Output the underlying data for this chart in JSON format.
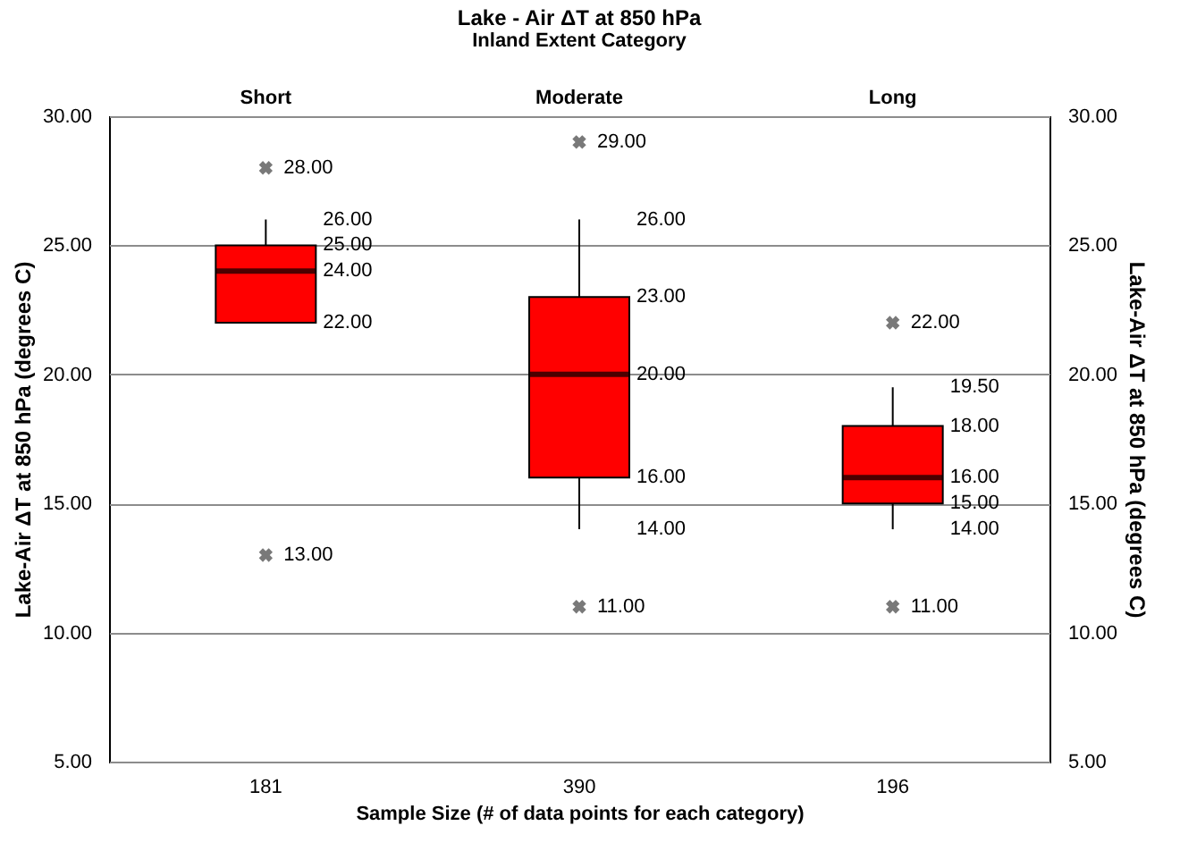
{
  "chart_data": {
    "type": "box",
    "title": "Lake - Air ΔT at 850 hPa",
    "subtitle": "Inland Extent Category",
    "xlabel": "Sample Size (# of data points for each category)",
    "ylabel": "Lake-Air ΔT at 850 hPa (degrees C)",
    "y2label": "Lake-Air ΔT at 850 hPa (degrees C)",
    "categories": [
      "181",
      "390",
      "196"
    ],
    "series": [
      {
        "color": "#ff0000",
        "boxes": [
          {
            "low": 22,
            "q1": 22,
            "median": 24,
            "q3": 25,
            "high": 26
          },
          {
            "low": 14,
            "q1": 16,
            "median": 20,
            "q3": 23,
            "high": 26
          },
          {
            "low": 14,
            "q1": 15,
            "median": 16,
            "q3": 18,
            "high": 19.5
          }
        ]
      },
      {
        "type": "scatter",
        "color": "#404040",
        "x": [
          "181",
          "181",
          "390",
          "390",
          "196",
          "196"
        ],
        "values": [
          28,
          13,
          29,
          11,
          22,
          11
        ]
      }
    ],
    "annotations": [
      "Short",
      "Moderate",
      "Long",
      {
        "text": "28.00",
        "x": "181",
        "y": 28
      },
      {
        "text": "26.00",
        "x": "181",
        "y": 26
      },
      {
        "text": "25.00",
        "x": "181",
        "y": 25
      },
      {
        "text": "24.00",
        "x": "181",
        "y": 24
      },
      {
        "text": "22.00",
        "x": "181",
        "y": 22
      },
      {
        "text": "13.00",
        "x": "181",
        "y": 13
      },
      {
        "text": "29.00",
        "x": "390",
        "y": 29
      },
      {
        "text": "26.00",
        "x": "390",
        "y": 26
      },
      {
        "text": "23.00",
        "x": "390",
        "y": 23
      },
      {
        "text": "20.00",
        "x": "390",
        "y": 20
      },
      {
        "text": "16.00",
        "x": "390",
        "y": 16
      },
      {
        "text": "14.00",
        "x": "390",
        "y": 14
      },
      {
        "text": "11.00",
        "x": "390",
        "y": 11
      },
      {
        "text": "22.00",
        "x": "196",
        "y": 22
      },
      {
        "text": "19.50",
        "x": "196",
        "y": 19.5
      },
      {
        "text": "18.00",
        "x": "196",
        "y": 18
      },
      {
        "text": "16.00",
        "x": "196",
        "y": 16
      },
      {
        "text": "15.00",
        "x": "196",
        "y": 15
      },
      {
        "text": "14.00",
        "x": "196",
        "y": 14
      },
      {
        "text": "11.00",
        "x": "196",
        "y": 11
      }
    ],
    "marker": "cross",
    "grid": "y",
    "ylim": [
      5,
      30
    ],
    "yticks": [
      {
        "value": 5,
        "label": "5.00"
      },
      {
        "value": 10,
        "label": "10.00"
      },
      {
        "value": 15,
        "label": "15.00"
      },
      {
        "value": 20,
        "label": "20.00"
      },
      {
        "value": 25,
        "label": "25.00"
      },
      {
        "value": 30,
        "label": "30.00"
      }
    ],
    "y2lim": [
      5,
      30
    ],
    "y2ticks": [
      {
        "value": 5,
        "label": "5.00"
      },
      {
        "value": 10,
        "label": "10.00"
      },
      {
        "value": 15,
        "label": "15.00"
      },
      {
        "value": 20,
        "label": "20.00"
      },
      {
        "value": 25,
        "label": "25.00"
      },
      {
        "value": 30,
        "label": "30.00"
      }
    ]
  }
}
